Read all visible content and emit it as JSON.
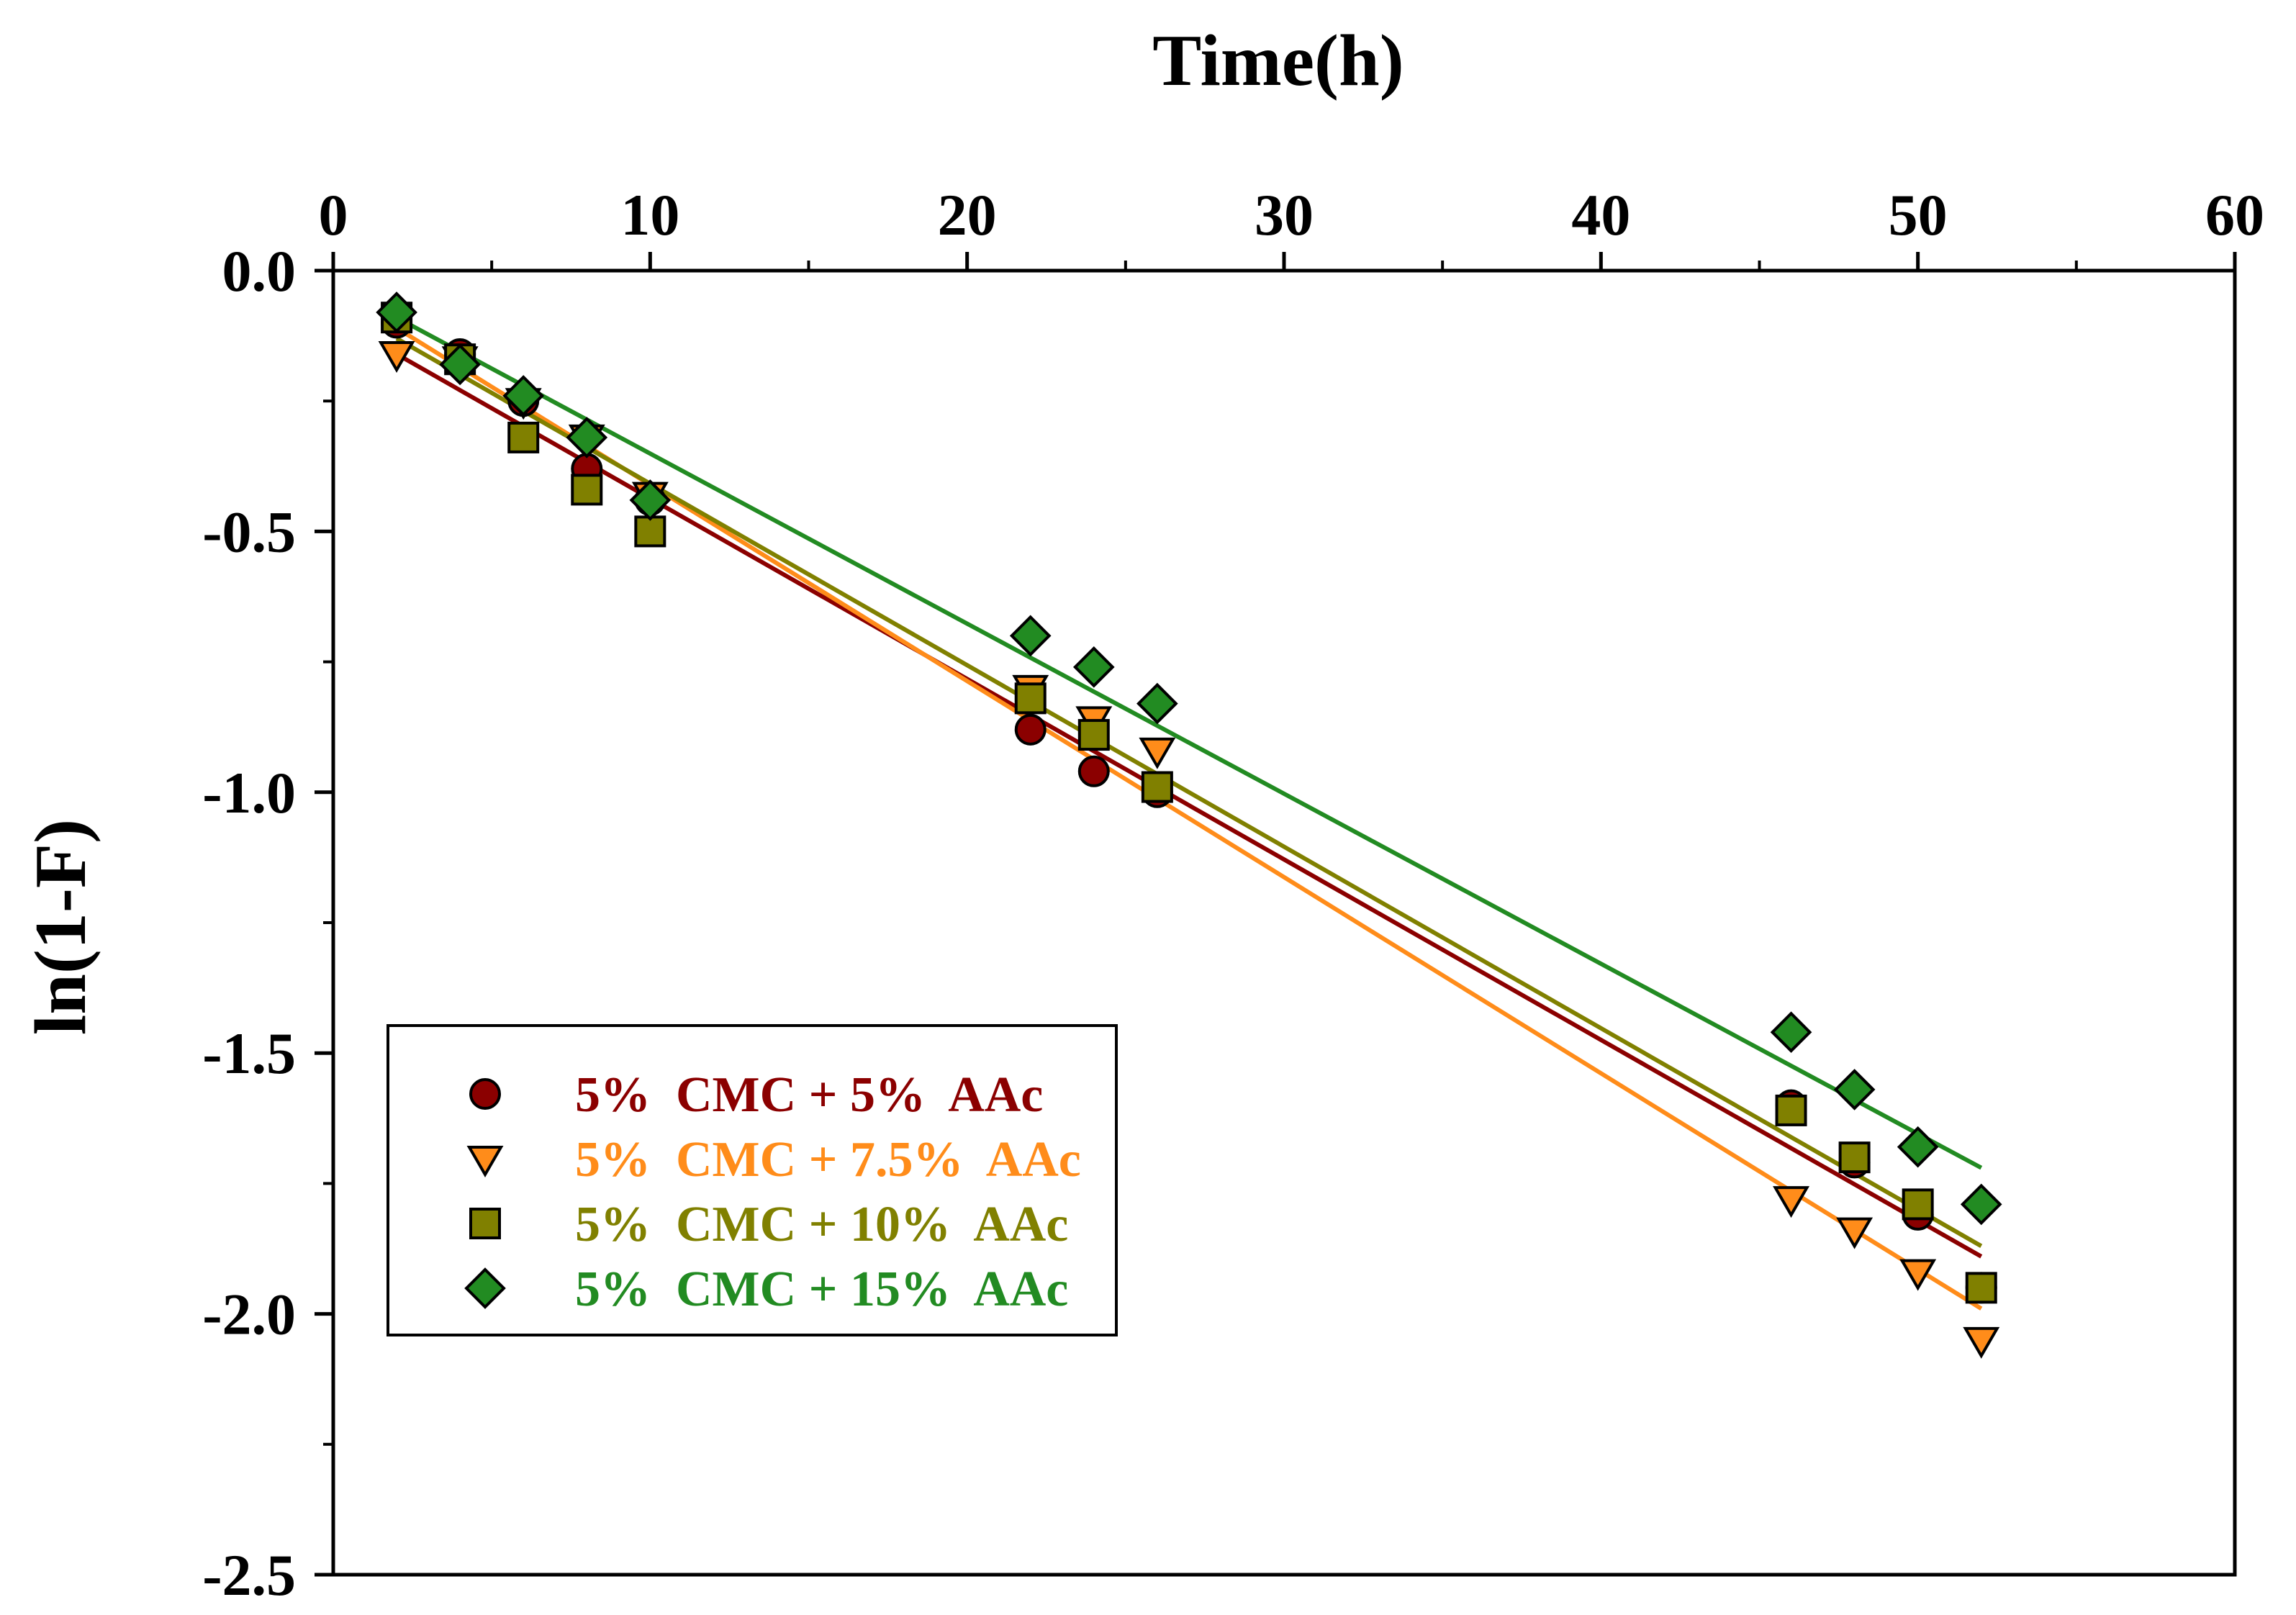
{
  "chart_data": {
    "type": "scatter",
    "xlabel": "Time(h)",
    "ylabel": "ln(1-F)",
    "x_axis_position": "top",
    "xlim": [
      0,
      60
    ],
    "ylim": [
      -2.5,
      0.0
    ],
    "x_ticks": [
      0,
      10,
      20,
      30,
      40,
      50,
      60
    ],
    "x_tick_labels": [
      "0",
      "10",
      "20",
      "30",
      "40",
      "50",
      "60"
    ],
    "y_ticks": [
      0.0,
      -0.5,
      -1.0,
      -1.5,
      -2.0,
      -2.5
    ],
    "y_tick_labels": [
      "0.0",
      "-0.5",
      "-1.0",
      "-1.5",
      "-2.0",
      "-2.5"
    ],
    "grid": false,
    "legend_position": "lower-left",
    "series": [
      {
        "name": "5%  CMC + 5%  AAc",
        "color": "#8b0000",
        "marker": "circle",
        "x": [
          2,
          4,
          6,
          8,
          10,
          22,
          24,
          26,
          46,
          48,
          50,
          52
        ],
        "y": [
          -0.1,
          -0.16,
          -0.25,
          -0.38,
          -0.44,
          -0.88,
          -0.96,
          -1.0,
          -1.6,
          -1.71,
          -1.81,
          -1.95
        ],
        "fit": {
          "x": [
            2,
            52
          ],
          "y": [
            -0.16,
            -1.89
          ]
        }
      },
      {
        "name": "5%  CMC + 7.5%  AAc",
        "color": "#ff8c1a",
        "marker": "triangle-down",
        "x": [
          2,
          4,
          6,
          8,
          10,
          22,
          24,
          26,
          46,
          48,
          50,
          52
        ],
        "y": [
          -0.16,
          -0.17,
          -0.25,
          -0.32,
          -0.43,
          -0.8,
          -0.86,
          -0.92,
          -1.78,
          -1.84,
          -1.92,
          -2.05
        ],
        "fit": {
          "x": [
            2,
            52
          ],
          "y": [
            -0.11,
            -1.99
          ]
        }
      },
      {
        "name": "5%  CMC + 10%  AAc",
        "color": "#808000",
        "marker": "square",
        "x": [
          2,
          4,
          6,
          8,
          10,
          22,
          24,
          26,
          46,
          48,
          50,
          52
        ],
        "y": [
          -0.09,
          -0.17,
          -0.32,
          -0.42,
          -0.5,
          -0.82,
          -0.89,
          -0.99,
          -1.61,
          -1.7,
          -1.79,
          -1.95
        ],
        "fit": {
          "x": [
            2,
            52
          ],
          "y": [
            -0.13,
            -1.87
          ]
        }
      },
      {
        "name": "5%  CMC + 15%  AAc",
        "color": "#228b22",
        "marker": "diamond",
        "x": [
          2,
          4,
          6,
          8,
          10,
          22,
          24,
          26,
          46,
          48,
          50,
          52
        ],
        "y": [
          -0.08,
          -0.18,
          -0.24,
          -0.32,
          -0.44,
          -0.7,
          -0.76,
          -0.83,
          -1.46,
          -1.57,
          -1.68,
          -1.79
        ],
        "fit": {
          "x": [
            2,
            52
          ],
          "y": [
            -0.09,
            -1.72
          ]
        }
      }
    ]
  }
}
